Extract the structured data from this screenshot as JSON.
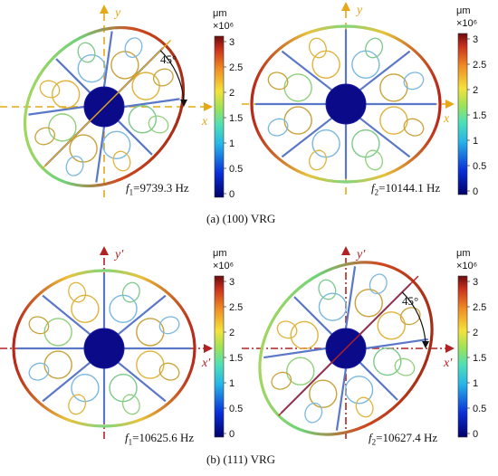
{
  "captions": {
    "a": "(a) (100) VRG",
    "b": "(b) (111) VRG"
  },
  "panels": [
    {
      "id": "a1",
      "freq_symbol": "f",
      "freq_sub": "1",
      "freq_value": "=9739.3 Hz",
      "axis_x": "x",
      "axis_y": "y",
      "angle_label": "45°",
      "ring_tilt_deg": -45
    },
    {
      "id": "a2",
      "freq_symbol": "f",
      "freq_sub": "2",
      "freq_value": "=10144.1 Hz",
      "axis_x": "x",
      "axis_y": "y",
      "angle_label": "",
      "ring_tilt_deg": 0
    },
    {
      "id": "b1",
      "freq_symbol": "f",
      "freq_sub": "1",
      "freq_value": "=10625.6 Hz",
      "axis_x": "x′",
      "axis_y": "y′",
      "angle_label": "",
      "ring_tilt_deg": 0
    },
    {
      "id": "b2",
      "freq_symbol": "f",
      "freq_sub": "2",
      "freq_value": "=10627.4 Hz",
      "axis_x": "x′",
      "axis_y": "y′",
      "angle_label": "45°",
      "ring_tilt_deg": -45
    }
  ],
  "colorbar": {
    "unit": "μm",
    "scale": "×10⁶",
    "ticks": [
      "3",
      "2.5",
      "2",
      "1.5",
      "1",
      "0.5",
      "0"
    ]
  },
  "colors": {
    "hub": "#0b0b8a",
    "axis_a": "#e6a817",
    "axis_b": "#b22222"
  }
}
